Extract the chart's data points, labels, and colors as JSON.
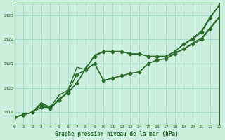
{
  "title": "Graphe pression niveau de la mer (hPa)",
  "background_color": "#cceedd",
  "grid_color": "#aaddcc",
  "line_color": "#2d6a2d",
  "xlim": [
    0,
    23
  ],
  "ylim": [
    1018.5,
    1023.5
  ],
  "yticks": [
    1019,
    1020,
    1021,
    1022,
    1023
  ],
  "xticks": [
    0,
    1,
    2,
    3,
    4,
    5,
    6,
    7,
    8,
    9,
    10,
    11,
    12,
    13,
    14,
    15,
    16,
    17,
    18,
    19,
    20,
    21,
    22,
    23
  ],
  "series": [
    [
      1018.8,
      1018.9,
      1019.0,
      1019.2,
      1019.2,
      1019.5,
      1019.8,
      1020.2,
      1020.8,
      1021.3,
      1021.5,
      1021.5,
      1021.5,
      1021.4,
      1021.4,
      1021.3,
      1021.3,
      1021.3,
      1021.5,
      1021.8,
      1022.0,
      1022.3,
      1022.9,
      1023.4
    ],
    [
      1018.8,
      1018.9,
      1019.0,
      1019.3,
      1019.15,
      1019.5,
      1019.85,
      1020.55,
      1020.75,
      1021.0,
      1020.3,
      1020.4,
      1020.5,
      1020.6,
      1020.65,
      1021.0,
      1021.15,
      1021.2,
      1021.4,
      1021.6,
      1021.8,
      1022.0,
      1022.45,
      1022.9
    ],
    [
      1018.8,
      1018.9,
      1019.0,
      1019.4,
      1019.2,
      1019.7,
      1019.9,
      1020.85,
      1020.75,
      1021.0,
      1020.3,
      1020.4,
      1020.5,
      1020.6,
      1020.65,
      1021.0,
      1021.15,
      1021.2,
      1021.45,
      1021.6,
      1021.85,
      1022.05,
      1022.5,
      1022.95
    ],
    [
      1018.8,
      1018.9,
      1019.0,
      1019.35,
      1019.15,
      1019.55,
      1019.8,
      1020.2,
      1020.8,
      1021.35,
      1021.5,
      1021.5,
      1021.5,
      1021.4,
      1021.4,
      1021.3,
      1021.3,
      1021.3,
      1021.5,
      1021.8,
      1022.05,
      1022.35,
      1022.95,
      1023.4
    ]
  ],
  "markers": [
    true,
    true,
    false,
    false
  ]
}
